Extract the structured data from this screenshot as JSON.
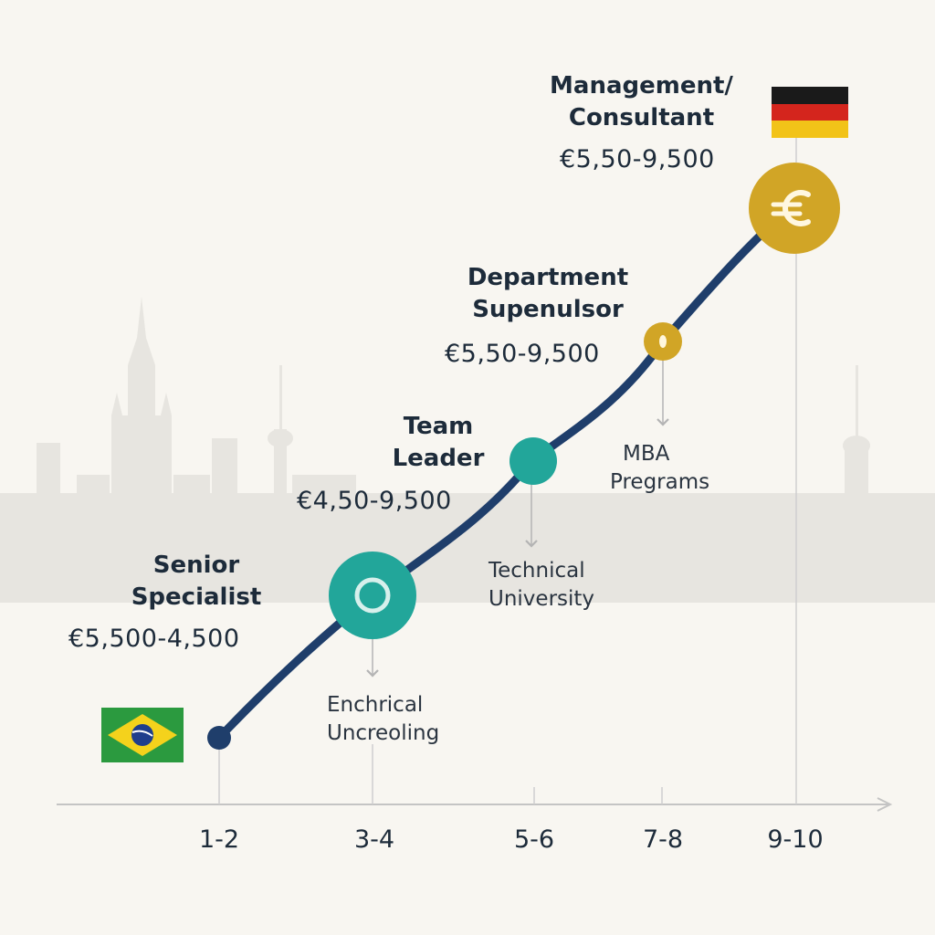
{
  "x_axis": {
    "ticks": [
      "1-2",
      "3-4",
      "5-6",
      "7-8",
      "9-10"
    ]
  },
  "roles": [
    {
      "title": [
        "Senior",
        "Specialist"
      ],
      "salary": "€5,500-4,500"
    },
    {
      "title": [
        "Team",
        "Leader"
      ],
      "salary": "€4,50-9,500"
    },
    {
      "title": [
        "Department",
        "Supenulsor"
      ],
      "salary": "€5,50-9,500"
    },
    {
      "title": [
        "Management/",
        "Consultant"
      ],
      "salary": "€5,50-9,500"
    }
  ],
  "education": [
    {
      "lines": [
        "Enchrical",
        "Uncreoling"
      ]
    },
    {
      "lines": [
        "Technical",
        "University"
      ]
    },
    {
      "lines": [
        "MBA",
        "Pregrams"
      ]
    }
  ],
  "flags": {
    "start": "brazil-flag",
    "end": "germany-flag"
  },
  "milestone_icons": [
    "ring-icon",
    "euro-icon"
  ],
  "colors": {
    "path": "#1f3e6b",
    "teal": "#22a69a",
    "gold": "#d1a526",
    "axis": "#c4c4c4",
    "skyline": "#e6e4df"
  }
}
